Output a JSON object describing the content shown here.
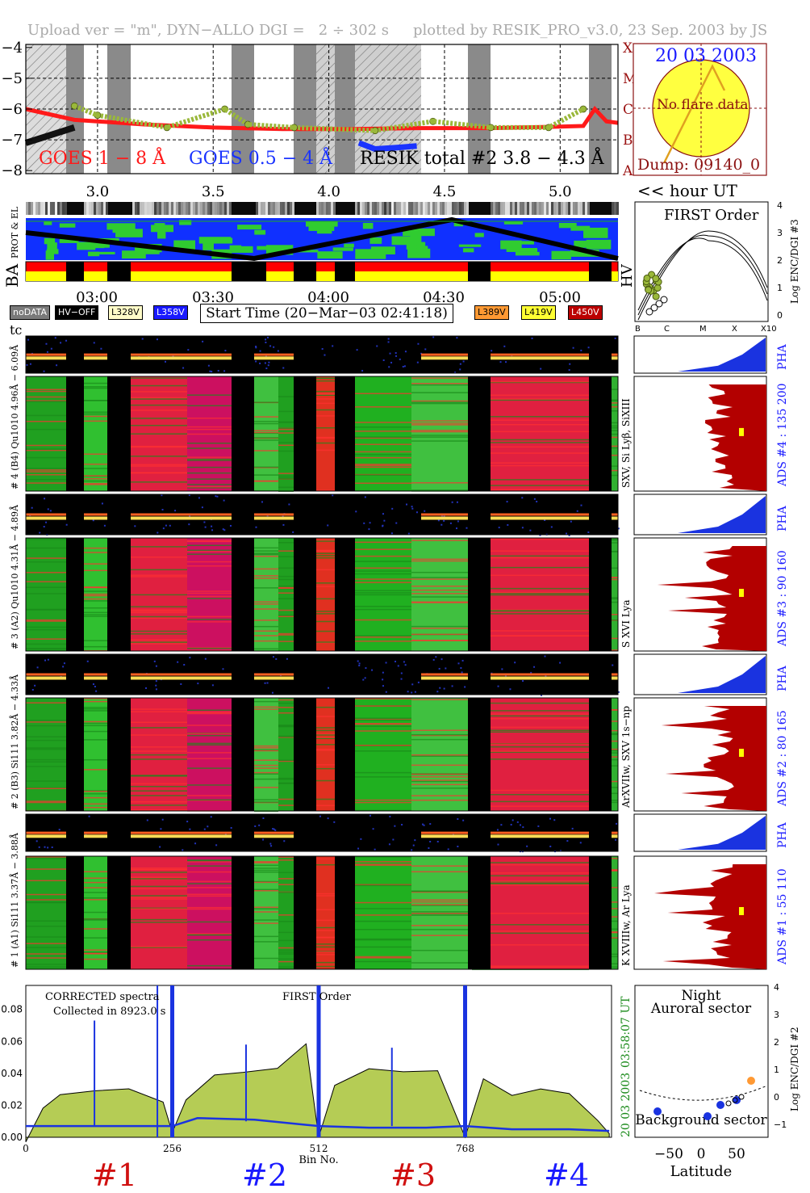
{
  "header": {
    "left": "Upload ver = \"m\", DYN−ALLO DGI =   2 ÷ 302 s",
    "right": "plotted by RESIK_PRO_v3.0, 23 Sep. 2003 by JS"
  },
  "goes_panel": {
    "y_ticks": [
      "−4",
      "−5",
      "−6",
      "−7",
      "−8"
    ],
    "class_labels": [
      "X",
      "M",
      "C",
      "B",
      "A"
    ],
    "legend_goes18": "GOES 1 − 8 Å",
    "legend_goes054": "GOES 0.5 − 4 Å",
    "legend_resik": "RESIK total #2  3.8 − 4.3 Å",
    "x_ticks": [
      "3.0",
      "3.5",
      "4.0",
      "4.5",
      "5.0"
    ],
    "x_unit": "<< hour UT",
    "colors": {
      "goes18": "#ff1a1a",
      "goes054": "#1a33ff",
      "resik": "#9ab83a",
      "dark": "#111111"
    }
  },
  "sun_panel": {
    "date": "20 03 2003",
    "no_flare": "No flare data",
    "dump": "Dump: 09140_0",
    "colors": {
      "disc": "#ffff40",
      "date": "#1a1aff",
      "text": "#8b1010"
    }
  },
  "status_strip": {
    "label_prot": "PROT & EL",
    "label_ba": "BA",
    "label_hv": "HV",
    "time_ticks": [
      "03:00",
      "03:30",
      "04:00",
      "04:30",
      "05:00"
    ]
  },
  "legend": {
    "nodata": "noDATA",
    "hvoff": "HV−OFF",
    "l328": "L328V",
    "l358": "L358V",
    "start_time": "Start Time (20−Mar−03 02:41:18)",
    "l389": "L389V",
    "l419": "L419V",
    "l450": "L450V",
    "tc": "tc"
  },
  "first_order": {
    "title": "FIRST Order",
    "y_ticks": [
      "4",
      "3",
      "2",
      "1",
      "0"
    ],
    "ylabel": "Log ENC/DGI #3",
    "x_ticks": [
      "B",
      "C",
      "M",
      "X",
      "X10"
    ]
  },
  "channels": [
    {
      "pha_label": "# 4 (B4) Qu1010 4.96Å − 6.09Å",
      "right_label": "SXV, Si Lyβ, SiXIII",
      "ads": "ADS #4 :  135 200",
      "pha_tag": "PHA"
    },
    {
      "pha_label": "# 3 (A2) Qu1010 4.31Å − 4.89Å",
      "right_label": "S XVI Lya",
      "ads": "ADS #3 :   90 160",
      "pha_tag": "PHA"
    },
    {
      "pha_label": "# 2 (B3) Si111 3.82Å − 4.33Å",
      "right_label": "ArXVIIw, SXV 1s−np",
      "ads": "ADS #2 :   80 165",
      "pha_tag": "PHA"
    },
    {
      "pha_label": "# 1 (A1) Si111 3.37Å − 3.88Å",
      "right_label": "K XVIIIw, Ar Lya",
      "ads": "ADS #1 :   55 110",
      "pha_tag": "PHA"
    }
  ],
  "spectra_panel": {
    "title_left": "CORRECTED spectra",
    "collected": "Collected in  8923.0 s",
    "first_order": "FIRST Order",
    "y_ticks": [
      "0.08",
      "0.06",
      "0.04",
      "0.02",
      "0.00"
    ],
    "x_ticks": [
      "0",
      "256",
      "512",
      "768"
    ],
    "xlabel": "Bin No.",
    "side_time": "03:58:07 UT",
    "side_date": "20 03 2003",
    "channel_labels": [
      "#1",
      "#2",
      "#3",
      "#4"
    ],
    "channel_label_colors": [
      "#d01010",
      "#1a1aff",
      "#d01010",
      "#1a1aff"
    ],
    "colors": {
      "fill": "#b5cc55",
      "blue": "#1a33e0"
    }
  },
  "orbit_panel": {
    "night": "Night",
    "auroral": "Auroral sector",
    "background": "Background sector",
    "y_ticks": [
      "4",
      "3",
      "2",
      "1",
      "0",
      "−1"
    ],
    "ylabel": "Log ENC/DGI #2",
    "x_ticks": [
      "−50",
      "0",
      "50"
    ],
    "xlabel": "Latitude"
  },
  "chart_data": [
    {
      "type": "line",
      "title": "",
      "xlabel": "<< hour UT",
      "ylabel": "",
      "xlim": [
        2.69,
        5.25
      ],
      "ylim": [
        -8.1,
        -3.9
      ],
      "series": [
        {
          "name": "GOES 1 − 8 Å",
          "x": [
            2.69,
            2.9,
            3.2,
            3.5,
            3.8,
            4.1,
            4.4,
            4.7,
            4.95,
            5.1,
            5.15,
            5.2,
            5.25
          ],
          "y": [
            -6.0,
            -6.35,
            -6.5,
            -6.6,
            -6.65,
            -6.65,
            -6.62,
            -6.62,
            -6.58,
            -6.55,
            -6.0,
            -6.4,
            -6.45
          ]
        },
        {
          "name": "GOES 0.5 − 4 Å",
          "x": [
            4.13,
            4.2,
            4.3,
            4.38
          ],
          "y": [
            -7.1,
            -7.3,
            -7.25,
            -7.2
          ]
        },
        {
          "name": "RESIK total #2  3.8 − 4.3 Å",
          "x": [
            2.9,
            3.0,
            3.3,
            3.55,
            3.65,
            3.85,
            4.2,
            4.45,
            4.7,
            4.95,
            5.1
          ],
          "y": [
            -5.9,
            -6.2,
            -6.6,
            -6.0,
            -6.5,
            -6.6,
            -6.7,
            -6.4,
            -6.6,
            -6.6,
            -6.0
          ]
        }
      ]
    },
    {
      "type": "area",
      "title": "CORRECTED spectra",
      "xlabel": "Bin No.",
      "ylabel": "",
      "xlim": [
        0,
        1024
      ],
      "ylim": [
        0,
        0.095
      ],
      "series": [
        {
          "name": "FIRST Order",
          "x": [
            0,
            30,
            60,
            120,
            180,
            240,
            256,
            280,
            330,
            380,
            440,
            490,
            512,
            540,
            600,
            660,
            720,
            768,
            800,
            850,
            900,
            950,
            1000,
            1020
          ],
          "y": [
            0.0,
            0.02,
            0.026,
            0.028,
            0.03,
            0.022,
            0.0,
            0.026,
            0.04,
            0.043,
            0.045,
            0.06,
            0.0,
            0.034,
            0.04,
            0.043,
            0.042,
            0.0,
            0.035,
            0.028,
            0.03,
            0.025,
            0.013,
            0.005
          ]
        },
        {
          "name": "background",
          "x": [
            0,
            100,
            256,
            300,
            400,
            512,
            600,
            700,
            768,
            850,
            950,
            1020
          ],
          "y": [
            0.007,
            0.007,
            0.007,
            0.012,
            0.011,
            0.007,
            0.006,
            0.006,
            0.007,
            0.005,
            0.005,
            0.004
          ]
        }
      ]
    }
  ]
}
